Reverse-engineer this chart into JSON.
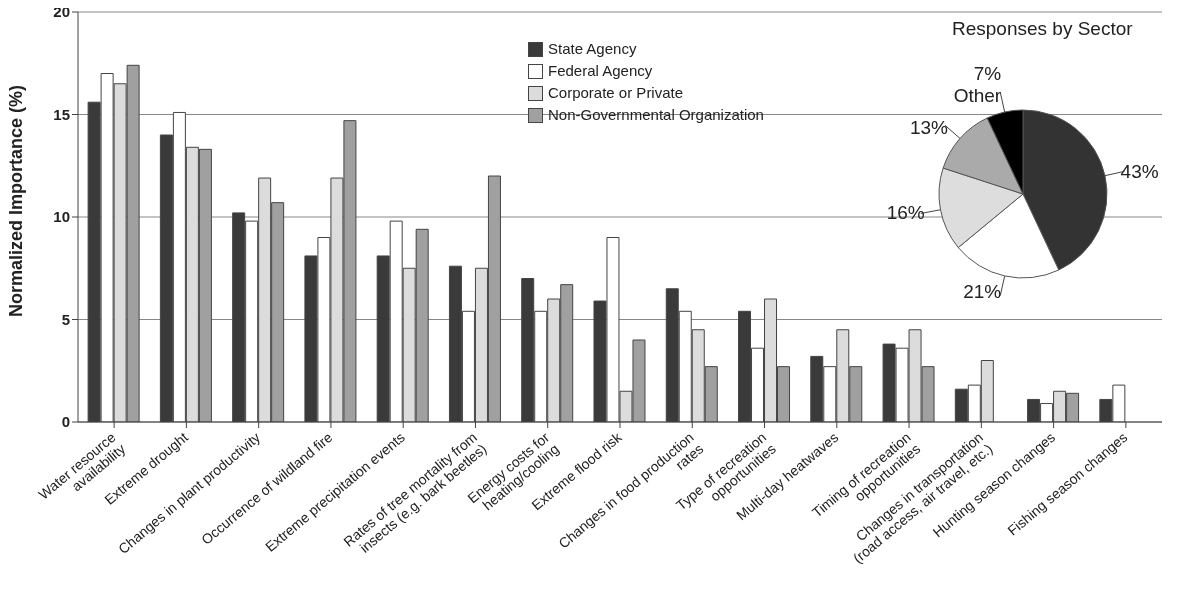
{
  "chart_data": [
    {
      "type": "bar",
      "ylabel": "Normalized Importance (%)",
      "categories": [
        "Water resource\navailability",
        "Extreme drought",
        "Changes in plant productivity",
        "Occurrence of wildland fire",
        "Extreme precipitation events",
        "Rates of tree mortality from\ninsects (e.g. bark beetles)",
        "Energy costs for\nheating/cooling",
        "Extreme flood risk",
        "Changes in food production\nrates",
        "Type of recreation\nopportunities",
        "Multi-day heatwaves",
        "Timing of recreation\nopportunities",
        "Changes in transportation\n(road access, air travel, etc.)",
        "Hunting season changes",
        "Fishing season changes"
      ],
      "series": [
        {
          "name": "State Agency",
          "color": "#3a3a3a",
          "values": [
            15.6,
            14.0,
            10.2,
            8.1,
            8.1,
            7.6,
            7.0,
            5.9,
            6.5,
            5.4,
            3.2,
            3.8,
            1.6,
            1.1,
            1.1
          ]
        },
        {
          "name": "Federal Agency",
          "color": "#ffffff",
          "values": [
            17.0,
            15.1,
            9.8,
            9.0,
            9.8,
            5.4,
            5.4,
            9.0,
            5.4,
            3.6,
            2.7,
            3.6,
            1.8,
            0.9,
            1.8
          ]
        },
        {
          "name": "Corporate or Private",
          "color": "#dcdcdc",
          "values": [
            16.5,
            13.4,
            11.9,
            11.9,
            7.5,
            7.5,
            6.0,
            1.5,
            4.5,
            6.0,
            4.5,
            4.5,
            3.0,
            1.5,
            null
          ]
        },
        {
          "name": "Non-Governmental Organization",
          "color": "#a0a0a0",
          "values": [
            17.4,
            13.3,
            10.7,
            14.7,
            9.4,
            12.0,
            6.7,
            4.0,
            2.7,
            2.7,
            2.7,
            2.7,
            null,
            1.4,
            null
          ]
        }
      ],
      "ylim": [
        0,
        20
      ],
      "yticks": [
        0,
        5,
        10,
        15,
        20
      ],
      "grid": "y",
      "legend": "top"
    },
    {
      "type": "pie",
      "title": "Responses by Sector",
      "categories": [
        null,
        null,
        null,
        null,
        "Other"
      ],
      "values": [
        43,
        21,
        16,
        13,
        7
      ],
      "colors": [
        "#333333",
        "#ffffff",
        "#dddddd",
        "#aaaaaa",
        "#000000"
      ],
      "value_labels": [
        "43%",
        "21%",
        "16%",
        "13%",
        "7%"
      ]
    }
  ]
}
